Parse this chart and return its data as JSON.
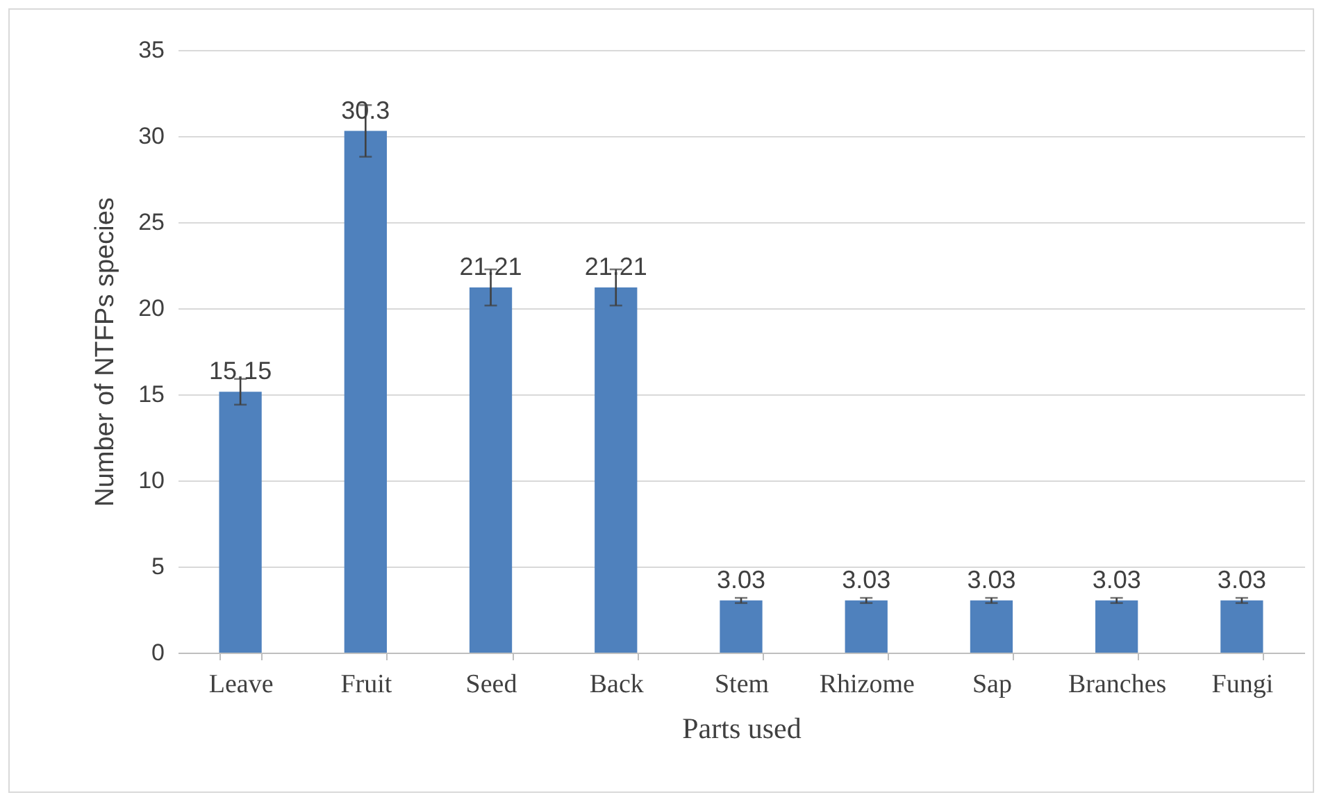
{
  "chart_data": {
    "type": "bar",
    "xlabel": "Parts used",
    "ylabel": "Number of NTFPs species",
    "categories": [
      "Leave",
      "Fruit",
      "Seed",
      "Back",
      "Stem",
      "Rhizome",
      "Sap",
      "Branches",
      "Fungi"
    ],
    "values": [
      15.15,
      30.3,
      21.21,
      21.21,
      3.03,
      3.03,
      3.03,
      3.03,
      3.03
    ],
    "errors": [
      0.75,
      1.5,
      1.05,
      1.05,
      0.15,
      0.15,
      0.15,
      0.15,
      0.15
    ],
    "color": "#4f81bd",
    "ylim": [
      0,
      35
    ],
    "yticks": [
      0,
      5,
      10,
      15,
      20,
      25,
      30,
      35
    ],
    "grid": "y",
    "data_labels": true
  }
}
